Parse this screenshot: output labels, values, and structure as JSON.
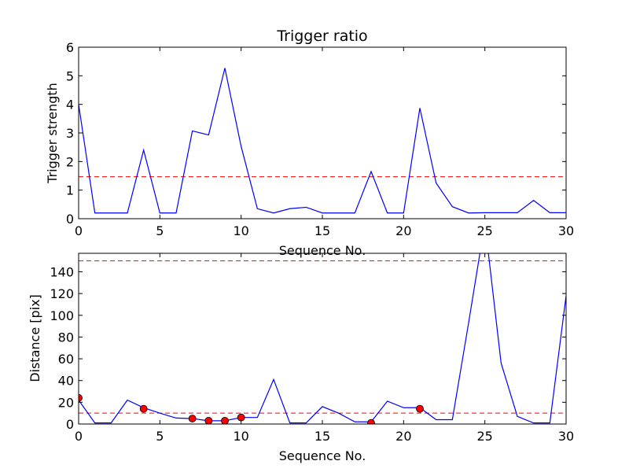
{
  "chart_data": [
    {
      "type": "line",
      "title": "Trigger ratio",
      "xlabel": "Sequence No.",
      "ylabel": "Trigger strength",
      "xlim": [
        0,
        30
      ],
      "ylim": [
        0,
        6
      ],
      "xticks": [
        0,
        5,
        10,
        15,
        20,
        25,
        30
      ],
      "yticks": [
        0,
        1,
        2,
        3,
        4,
        5,
        6
      ],
      "grid": false,
      "series": [
        {
          "color": "#0000ff",
          "x": [
            0,
            1,
            2,
            3,
            4,
            5,
            6,
            7,
            8,
            9,
            10,
            11,
            12,
            13,
            14,
            15,
            16,
            17,
            18,
            19,
            20,
            21,
            22,
            23,
            24,
            25,
            26,
            27,
            28,
            29,
            30
          ],
          "values": [
            4.0,
            0.2,
            0.2,
            0.2,
            2.4,
            0.2,
            0.2,
            3.07,
            2.93,
            5.27,
            2.53,
            0.35,
            0.2,
            0.35,
            0.4,
            0.2,
            0.2,
            0.2,
            1.65,
            0.2,
            0.2,
            3.87,
            1.25,
            0.42,
            0.2,
            0.21,
            0.21,
            0.21,
            0.64,
            0.21,
            0.21
          ]
        }
      ],
      "threshold_lines": [
        {
          "y": 1.47,
          "color": "#ff0000",
          "style": "dashed"
        }
      ]
    },
    {
      "type": "line",
      "title": "",
      "xlabel": "Sequence No.",
      "ylabel": "Distance [pix]",
      "xlim": [
        0,
        30
      ],
      "ylim": [
        0,
        157
      ],
      "xticks": [
        0,
        5,
        10,
        15,
        20,
        25,
        30
      ],
      "yticks": [
        0,
        20,
        40,
        60,
        80,
        100,
        120,
        140
      ],
      "grid": false,
      "series": [
        {
          "color": "#0000ff",
          "x": [
            0,
            1,
            2,
            3,
            4,
            5,
            6,
            7,
            8,
            9,
            10,
            11,
            12,
            13,
            14,
            15,
            16,
            17,
            18,
            19,
            20,
            21,
            22,
            23,
            24,
            25,
            26,
            27,
            28,
            29,
            30
          ],
          "values": [
            22,
            1,
            1,
            22,
            15,
            10,
            5.5,
            5,
            3,
            3,
            6,
            6,
            41,
            1,
            1,
            16,
            10,
            2,
            2,
            21,
            15,
            15,
            4,
            4,
            93,
            185,
            56,
            7,
            1,
            1,
            118
          ]
        }
      ],
      "markers": {
        "color": "#ff0000",
        "x": [
          0,
          4,
          7,
          8,
          9,
          10,
          18,
          21
        ],
        "values": [
          24,
          14,
          5,
          3,
          3,
          6,
          1,
          14
        ]
      },
      "threshold_lines": [
        {
          "y": 150,
          "color": "#ff0000",
          "style": "dashed"
        },
        {
          "y": 10,
          "color": "#ff0000",
          "style": "dashed"
        }
      ]
    }
  ]
}
